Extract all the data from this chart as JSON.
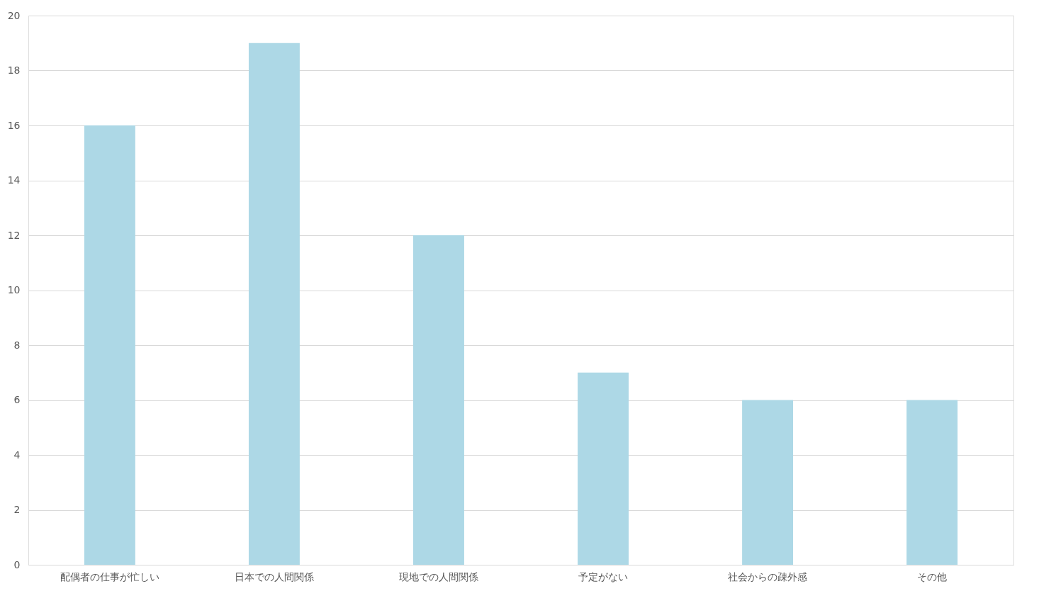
{
  "chart_data": {
    "type": "bar",
    "categories": [
      "配偶者の仕事が忙しい",
      "日本での人間関係",
      "現地での人間関係",
      "予定がない",
      "社会からの疎外感",
      "その他"
    ],
    "values": [
      16,
      19,
      12,
      7,
      6,
      6
    ],
    "color": "#add8e6",
    "ylim": [
      0,
      20
    ],
    "yticks": [
      0,
      2,
      4,
      6,
      8,
      10,
      12,
      14,
      16,
      18,
      20
    ],
    "grid": "y"
  }
}
